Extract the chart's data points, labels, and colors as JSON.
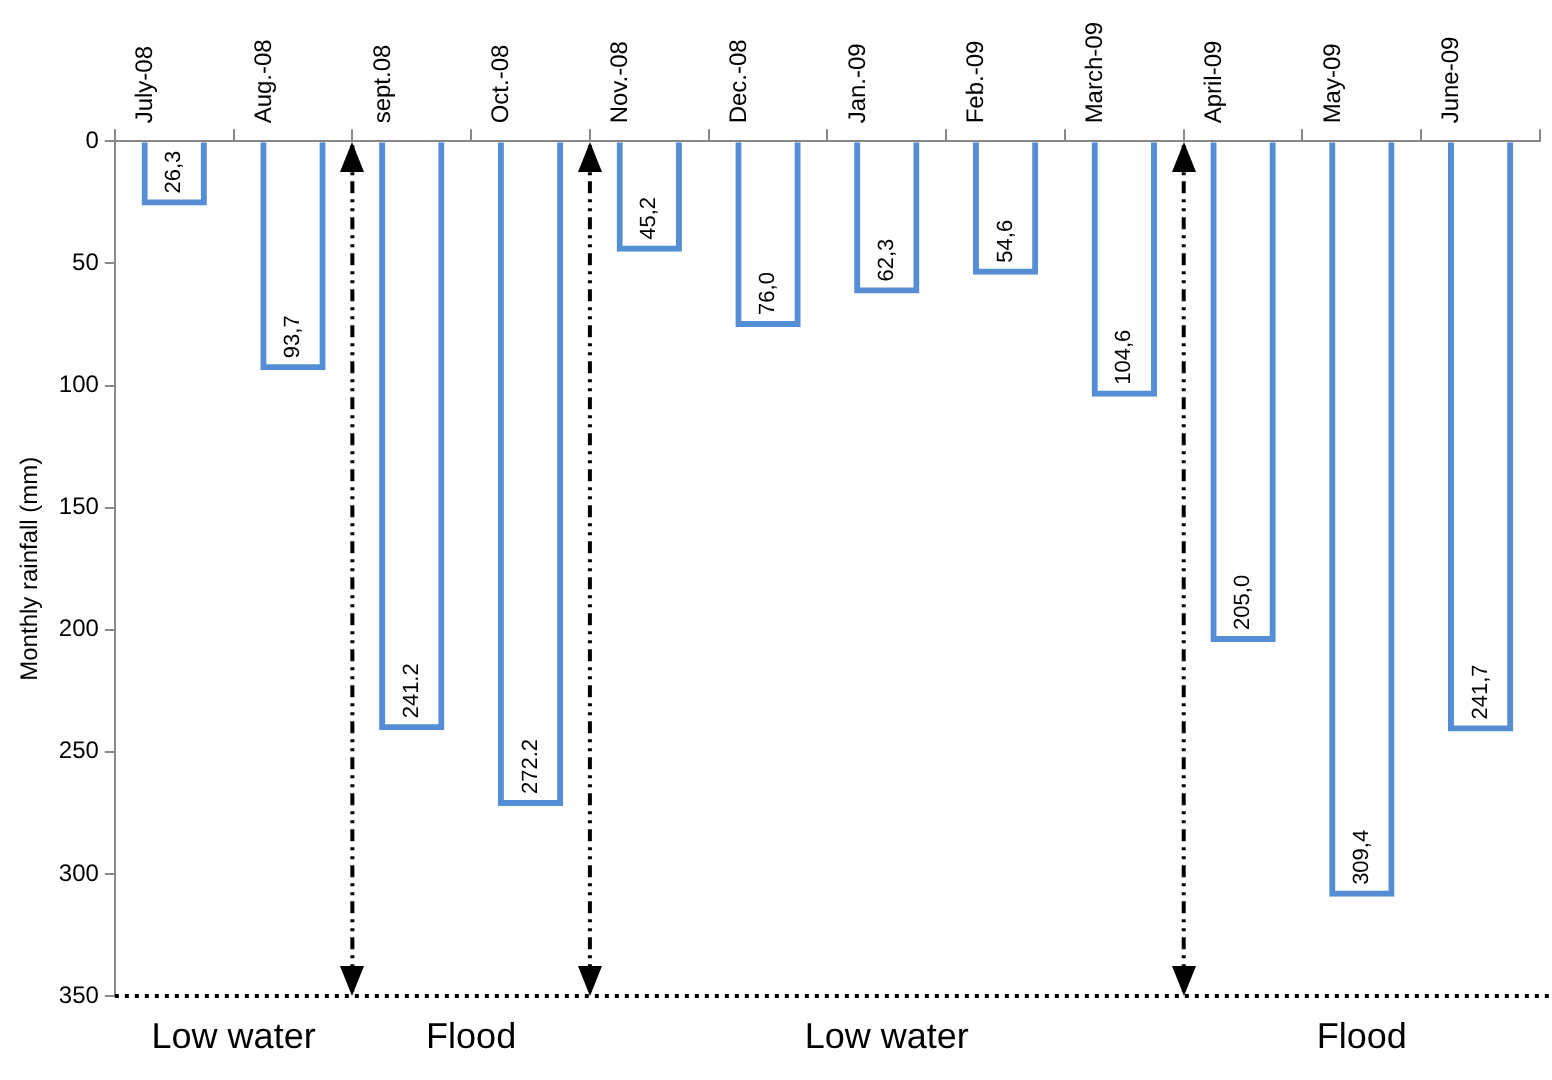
{
  "chart_data": {
    "type": "bar",
    "ylabel": "Monthly rainfall (mm)",
    "categories": [
      "July-08",
      "Aug.-08",
      "sept.08",
      "Oct.-08",
      "Nov.-08",
      "Dec.-08",
      "Jan.-09",
      "Feb.-09",
      "March-09",
      "April-09",
      "May-09",
      "June-09"
    ],
    "values": [
      26.3,
      93.7,
      241.2,
      272.2,
      45.2,
      76.0,
      62.3,
      54.6,
      104.6,
      205.0,
      309.4,
      241.7
    ],
    "value_labels": [
      "26,3",
      "93,7",
      "241.2",
      "272.2",
      "45,2",
      "76,0",
      "62,3",
      "54,6",
      "104,6",
      "205,0",
      "309,4",
      "241,7"
    ],
    "color": "#558ed5",
    "ylim": [
      350,
      0
    ],
    "yticks": [
      0,
      50,
      100,
      150,
      200,
      250,
      300,
      350
    ],
    "grid": false,
    "ref_lines": [
      {
        "axis": "y",
        "value": 350,
        "line_style": "dotted",
        "color": "#000000"
      },
      {
        "axis": "x",
        "value": "sept.08",
        "line_style": "dashed",
        "color": "#000000"
      },
      {
        "axis": "x",
        "value": "Nov.-08",
        "line_style": "dashed",
        "color": "#000000"
      },
      {
        "axis": "x",
        "value": "April-09",
        "line_style": "dashed",
        "color": "#000000"
      }
    ],
    "annotations": [
      "Low water",
      "Flood",
      "Low water",
      "Flood"
    ]
  }
}
